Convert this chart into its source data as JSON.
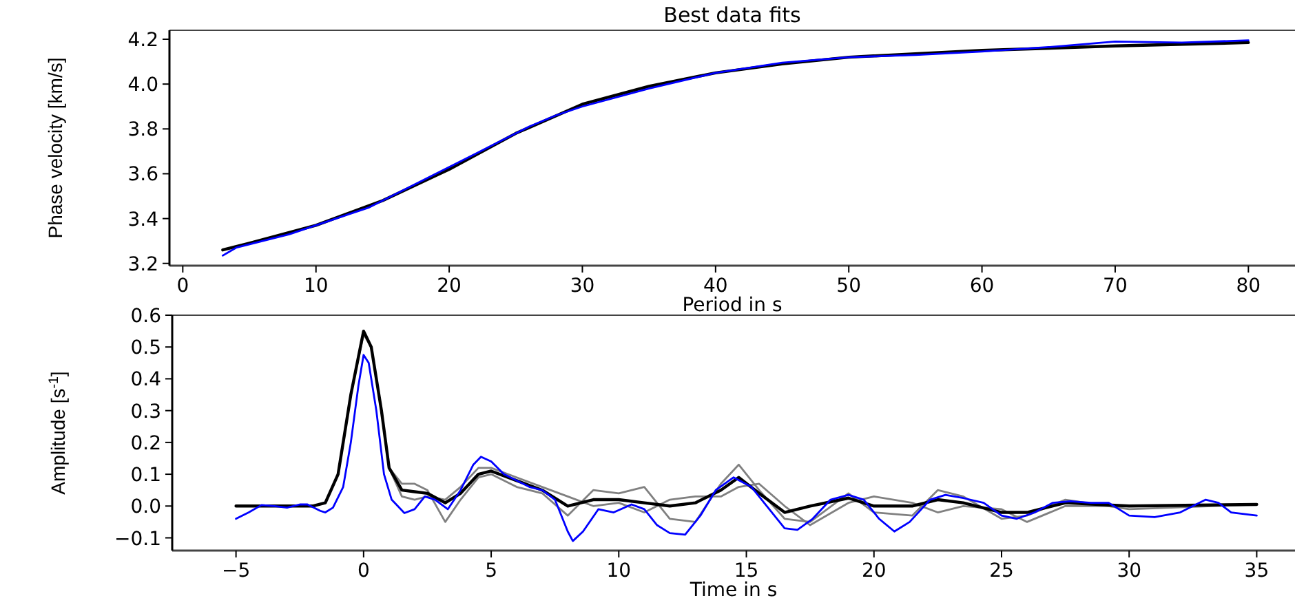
{
  "chart_data": [
    {
      "type": "line",
      "title": "Best data fits",
      "xlabel": "Period in s",
      "ylabel": "Phase velocity [km/s]",
      "xlim": [
        -1,
        83.5
      ],
      "ylim": [
        3.19,
        4.24
      ],
      "xticks": [
        0,
        10,
        20,
        30,
        40,
        50,
        60,
        70,
        80
      ],
      "yticks": [
        {
          "value": 3.2,
          "label": "3.2"
        },
        {
          "value": 3.4,
          "label": "3.4"
        },
        {
          "value": 3.6,
          "label": "3.6"
        },
        {
          "value": 3.8,
          "label": "3.8"
        },
        {
          "value": 4.0,
          "label": "4.0"
        },
        {
          "value": 4.2,
          "label": "4.2"
        }
      ],
      "line_style": "solid",
      "series": [
        {
          "color": "#000000",
          "x": [
            3,
            5,
            10,
            15,
            20,
            25,
            30,
            35,
            40,
            45,
            50,
            60,
            70,
            80
          ],
          "values": [
            3.26,
            3.29,
            3.37,
            3.48,
            3.62,
            3.78,
            3.91,
            3.99,
            4.05,
            4.09,
            4.12,
            4.15,
            4.17,
            4.185
          ]
        },
        {
          "color": "#0000ff",
          "x": [
            3,
            4,
            6,
            8,
            10,
            12,
            14,
            16,
            18,
            20,
            22,
            24,
            26,
            28,
            30,
            35,
            40,
            45,
            50,
            55,
            60,
            65,
            70,
            75,
            80
          ],
          "values": [
            3.235,
            3.27,
            3.3,
            3.33,
            3.37,
            3.41,
            3.45,
            3.51,
            3.57,
            3.63,
            3.69,
            3.75,
            3.81,
            3.86,
            3.9,
            3.98,
            4.05,
            4.095,
            4.12,
            4.13,
            4.145,
            4.165,
            4.19,
            4.185,
            4.195
          ]
        }
      ]
    },
    {
      "type": "line",
      "xlabel": "Time in s",
      "ylabel": "Amplitude [s$^{-1}$]",
      "xlim": [
        -7.5,
        36.5
      ],
      "ylim": [
        -0.14,
        0.6
      ],
      "xticks": [
        {
          "value": -5,
          "label": "−5"
        },
        0,
        5,
        10,
        15,
        20,
        25,
        30,
        35
      ],
      "yticks": [
        {
          "value": -0.1,
          "label": "−0.1"
        },
        {
          "value": 0,
          "label": "0.0"
        },
        {
          "value": 0.1,
          "label": "0.1"
        },
        {
          "value": 0.2,
          "label": "0.2"
        },
        {
          "value": 0.3,
          "label": "0.3"
        },
        {
          "value": 0.4,
          "label": "0.4"
        },
        {
          "value": 0.5,
          "label": "0.5"
        },
        {
          "value": 0.6,
          "label": "0.6"
        }
      ],
      "line_style": "solid",
      "series": [
        {
          "color": "#808080",
          "x": [
            -5,
            -2,
            -1.5,
            -1,
            -0.5,
            0,
            0.3,
            0.7,
            1,
            1.5,
            2,
            2.5,
            3.2,
            3.8,
            4.5,
            5,
            6,
            7,
            8,
            9,
            10,
            11,
            12,
            13,
            14,
            14.7,
            15.5,
            16.5,
            17.5,
            19,
            20,
            21.5,
            22.5,
            23.5,
            25,
            26,
            27.5,
            30,
            35
          ],
          "values": [
            0,
            0,
            0.01,
            0.1,
            0.35,
            0.54,
            0.5,
            0.3,
            0.12,
            0.07,
            0.07,
            0.05,
            -0.05,
            0.02,
            0.09,
            0.1,
            0.06,
            0.04,
            -0.03,
            0.05,
            0.04,
            0.06,
            -0.04,
            -0.05,
            0.07,
            0.13,
            0.05,
            -0.04,
            -0.05,
            0.04,
            -0.02,
            -0.03,
            0.05,
            0.03,
            -0.04,
            -0.03,
            0.02,
            -0.01,
            0.005
          ]
        },
        {
          "color": "#808080",
          "x": [
            -5,
            -2,
            -1.5,
            -1,
            -0.5,
            0,
            0.3,
            0.7,
            1,
            1.5,
            2,
            2.5,
            3.2,
            3.8,
            4.5,
            5,
            6,
            7,
            8,
            9,
            10,
            11,
            12,
            13,
            14,
            14.7,
            15.5,
            16.5,
            17.5,
            19,
            20,
            21.5,
            22.5,
            23.5,
            25,
            26,
            27.5,
            30,
            35
          ],
          "values": [
            0,
            0,
            0.01,
            0.1,
            0.35,
            0.55,
            0.5,
            0.3,
            0.12,
            0.03,
            0.02,
            0.03,
            0.02,
            0.06,
            0.12,
            0.12,
            0.09,
            0.06,
            0.03,
            0.0,
            0.01,
            -0.02,
            0.02,
            0.03,
            0.03,
            0.06,
            0.07,
            0.0,
            -0.06,
            0.01,
            0.03,
            0.01,
            -0.02,
            0.0,
            -0.01,
            -0.05,
            0.0,
            0.0,
            0.005
          ]
        },
        {
          "color": "#000000",
          "x": [
            -5,
            -2,
            -1.5,
            -1,
            -0.5,
            0,
            0.3,
            0.7,
            1,
            1.5,
            2,
            2.5,
            3.2,
            3.8,
            4.5,
            5,
            6,
            7,
            8,
            9,
            10,
            11,
            12,
            13,
            14,
            14.7,
            15.5,
            16.5,
            17.5,
            19,
            20,
            21.5,
            22.5,
            23.5,
            25,
            26,
            27.5,
            30,
            35
          ],
          "values": [
            0,
            0,
            0.01,
            0.1,
            0.35,
            0.55,
            0.5,
            0.3,
            0.12,
            0.05,
            0.045,
            0.04,
            0.01,
            0.04,
            0.1,
            0.11,
            0.08,
            0.05,
            0,
            0.02,
            0.02,
            0.01,
            0,
            0.01,
            0.05,
            0.09,
            0.04,
            -0.02,
            0,
            0.025,
            0,
            0,
            0.02,
            0.01,
            -0.02,
            -0.02,
            0.01,
            0,
            0.005
          ]
        },
        {
          "color": "#0000ff",
          "x": [
            -5,
            -4.5,
            -4,
            -3.5,
            -3,
            -2.5,
            -2.2,
            -1.7,
            -1.5,
            -1.2,
            -0.8,
            -0.5,
            -0.2,
            0,
            0.2,
            0.5,
            0.8,
            1.1,
            1.6,
            2,
            2.4,
            2.8,
            3.3,
            3.8,
            4.3,
            4.6,
            5,
            5.5,
            6,
            6.5,
            7,
            7.5,
            8,
            8.2,
            8.6,
            9.2,
            9.8,
            10.5,
            11,
            11.5,
            12,
            12.6,
            13.2,
            13.8,
            14.5,
            15.2,
            15.8,
            16.5,
            17,
            17.6,
            18.3,
            19,
            19.6,
            20.2,
            20.8,
            21.4,
            22.2,
            22.8,
            23.5,
            24.3,
            25,
            25.6,
            26.3,
            27,
            27.7,
            28.5,
            29.2,
            30,
            31,
            32,
            33,
            33.5,
            34,
            35
          ],
          "values": [
            -0.04,
            -0.02,
            0.003,
            0,
            -0.005,
            0.005,
            0.005,
            -0.015,
            -0.02,
            -0.005,
            0.06,
            0.2,
            0.38,
            0.475,
            0.45,
            0.3,
            0.1,
            0.02,
            -0.022,
            -0.01,
            0.03,
            0.02,
            -0.01,
            0.05,
            0.13,
            0.155,
            0.14,
            0.1,
            0.08,
            0.06,
            0.05,
            0.02,
            -0.08,
            -0.11,
            -0.08,
            -0.01,
            -0.02,
            0.005,
            -0.01,
            -0.06,
            -0.085,
            -0.09,
            -0.03,
            0.05,
            0.09,
            0.06,
            0,
            -0.07,
            -0.075,
            -0.04,
            0.02,
            0.035,
            0.02,
            -0.04,
            -0.08,
            -0.05,
            0.02,
            0.035,
            0.025,
            0.01,
            -0.03,
            -0.04,
            -0.02,
            0.01,
            0.015,
            0.01,
            0.01,
            -0.03,
            -0.035,
            -0.02,
            0.02,
            0.01,
            -0.02,
            -0.03
          ]
        }
      ]
    }
  ]
}
